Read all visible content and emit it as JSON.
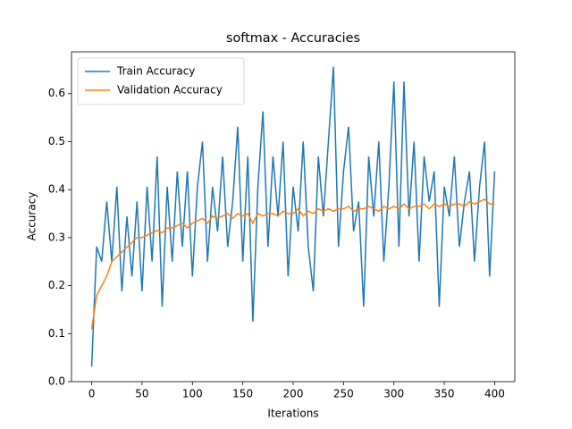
{
  "chart_data": {
    "type": "line",
    "title": "softmax - Accuracies",
    "x_label": "Iterations",
    "y_label": "Accuracy",
    "x": [
      0,
      5,
      10,
      15,
      20,
      25,
      30,
      35,
      40,
      45,
      50,
      55,
      60,
      65,
      70,
      75,
      80,
      85,
      90,
      95,
      100,
      105,
      110,
      115,
      120,
      125,
      130,
      135,
      140,
      145,
      150,
      155,
      160,
      165,
      170,
      175,
      180,
      185,
      190,
      195,
      200,
      205,
      210,
      215,
      220,
      225,
      230,
      235,
      240,
      245,
      250,
      255,
      260,
      265,
      270,
      275,
      280,
      285,
      290,
      295,
      300,
      305,
      310,
      315,
      320,
      325,
      330,
      335,
      340,
      345,
      350,
      355,
      360,
      365,
      370,
      375,
      380,
      385,
      390,
      395,
      400
    ],
    "series": [
      {
        "name": "Train Accuracy",
        "color": "#1f77b4",
        "values": [
          0.031,
          0.281,
          0.25,
          0.375,
          0.25,
          0.406,
          0.188,
          0.344,
          0.219,
          0.375,
          0.188,
          0.406,
          0.25,
          0.469,
          0.156,
          0.406,
          0.25,
          0.438,
          0.281,
          0.438,
          0.219,
          0.406,
          0.5,
          0.25,
          0.406,
          0.313,
          0.469,
          0.281,
          0.375,
          0.531,
          0.25,
          0.469,
          0.125,
          0.406,
          0.563,
          0.281,
          0.469,
          0.344,
          0.5,
          0.219,
          0.406,
          0.313,
          0.5,
          0.281,
          0.188,
          0.469,
          0.344,
          0.5,
          0.656,
          0.281,
          0.438,
          0.531,
          0.313,
          0.375,
          0.156,
          0.469,
          0.344,
          0.5,
          0.25,
          0.406,
          0.625,
          0.281,
          0.625,
          0.344,
          0.5,
          0.25,
          0.469,
          0.375,
          0.438,
          0.156,
          0.406,
          0.344,
          0.469,
          0.281,
          0.375,
          0.438,
          0.25,
          0.406,
          0.5,
          0.219,
          0.438
        ]
      },
      {
        "name": "Validation Accuracy",
        "color": "#ff7f0e",
        "values": [
          0.109,
          0.18,
          0.2,
          0.22,
          0.25,
          0.26,
          0.27,
          0.28,
          0.29,
          0.3,
          0.3,
          0.305,
          0.31,
          0.315,
          0.31,
          0.32,
          0.32,
          0.325,
          0.33,
          0.32,
          0.33,
          0.335,
          0.34,
          0.33,
          0.345,
          0.34,
          0.345,
          0.35,
          0.34,
          0.35,
          0.345,
          0.35,
          0.33,
          0.35,
          0.345,
          0.35,
          0.35,
          0.345,
          0.355,
          0.35,
          0.35,
          0.36,
          0.345,
          0.355,
          0.35,
          0.36,
          0.355,
          0.36,
          0.355,
          0.36,
          0.36,
          0.365,
          0.355,
          0.36,
          0.36,
          0.365,
          0.36,
          0.355,
          0.365,
          0.36,
          0.365,
          0.36,
          0.37,
          0.36,
          0.365,
          0.365,
          0.37,
          0.36,
          0.37,
          0.365,
          0.37,
          0.365,
          0.37,
          0.37,
          0.365,
          0.375,
          0.37,
          0.375,
          0.38,
          0.37,
          0.37
        ]
      }
    ],
    "xlim": [
      -20,
      420
    ],
    "ylim": [
      0,
      0.687
    ],
    "xticks": [
      0,
      50,
      100,
      150,
      200,
      250,
      300,
      350,
      400
    ],
    "yticks": [
      {
        "value": 0,
        "label": "0.0"
      },
      0.1,
      0.2,
      0.3,
      0.4,
      0.5,
      0.6
    ],
    "legend": "upper left",
    "grid": false
  }
}
